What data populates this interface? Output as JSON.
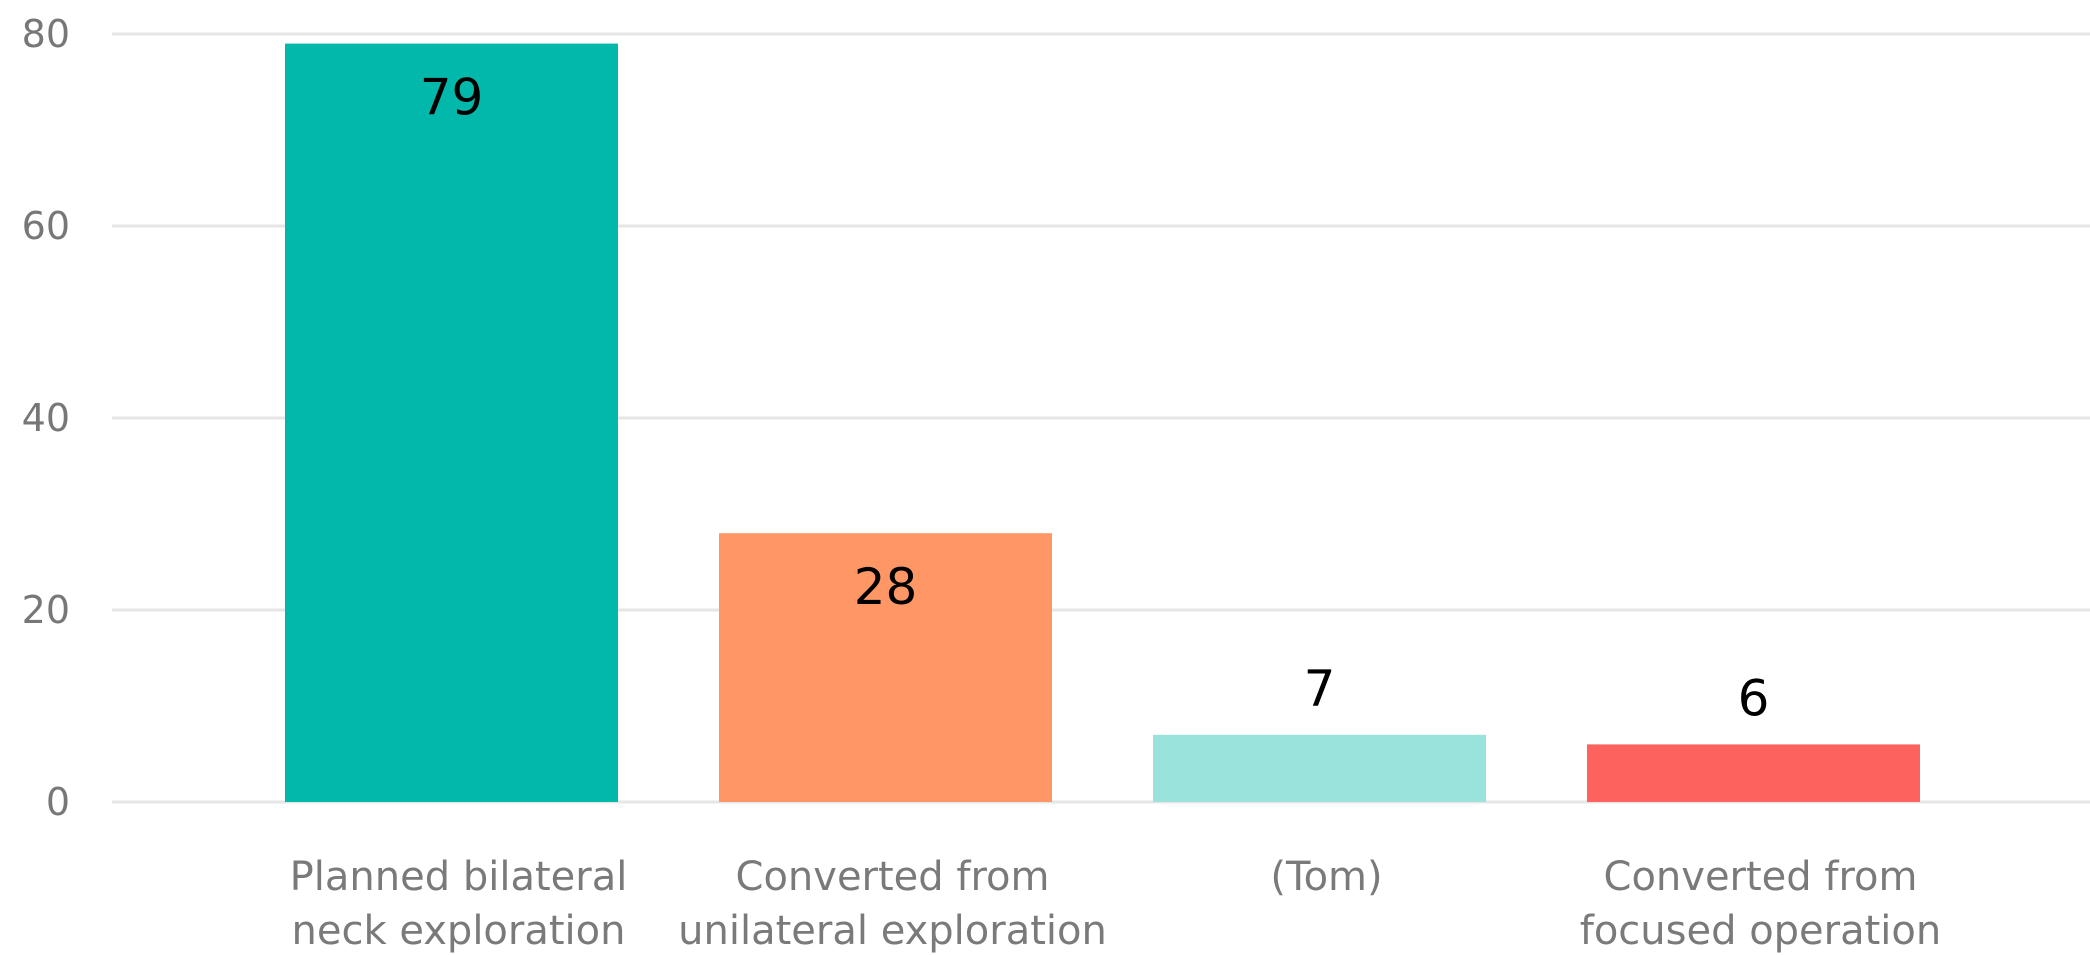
{
  "chart_data": {
    "type": "bar",
    "categories": [
      [
        "Planned bilateral",
        "neck exploration"
      ],
      [
        "Converted from",
        "unilateral exploration"
      ],
      [
        "(Tom)"
      ],
      [
        "Converted from",
        "focused operation"
      ]
    ],
    "values": [
      79,
      28,
      7,
      6
    ],
    "colors": [
      "#02b8aa",
      "#fe9666",
      "#9ae3dc",
      "#fd625e"
    ],
    "ylim": [
      0,
      80
    ],
    "yticks": [
      0,
      20,
      40,
      60,
      80
    ],
    "grid": true,
    "data_labels": true,
    "title": "",
    "xlabel": "",
    "ylabel": ""
  }
}
